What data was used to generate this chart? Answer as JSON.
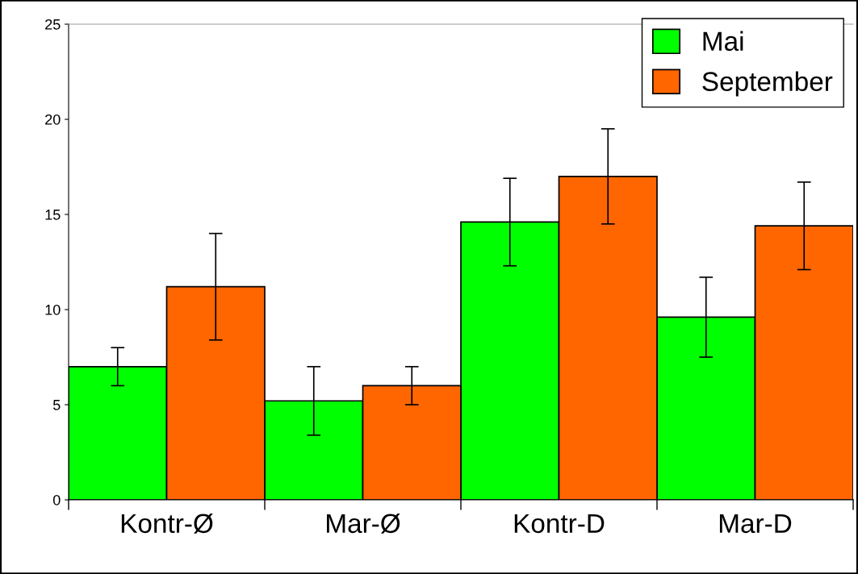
{
  "chart_data": {
    "type": "bar",
    "categories": [
      "Kontr-Ø",
      "Mar-Ø",
      "Kontr-D",
      "Mar-D"
    ],
    "series": [
      {
        "name": "Mai",
        "color": "#00ff00",
        "values": [
          7.0,
          5.2,
          14.6,
          9.6
        ],
        "errors": [
          1.0,
          1.8,
          2.3,
          2.1
        ]
      },
      {
        "name": "September",
        "color": "#ff6600",
        "values": [
          11.2,
          6.0,
          17.0,
          14.4
        ],
        "errors": [
          2.8,
          1.0,
          2.5,
          2.3
        ]
      }
    ],
    "ylim": [
      0,
      25
    ],
    "yticks": [
      0,
      5,
      10,
      15,
      20,
      25
    ],
    "grid": false,
    "legend": "top right"
  }
}
